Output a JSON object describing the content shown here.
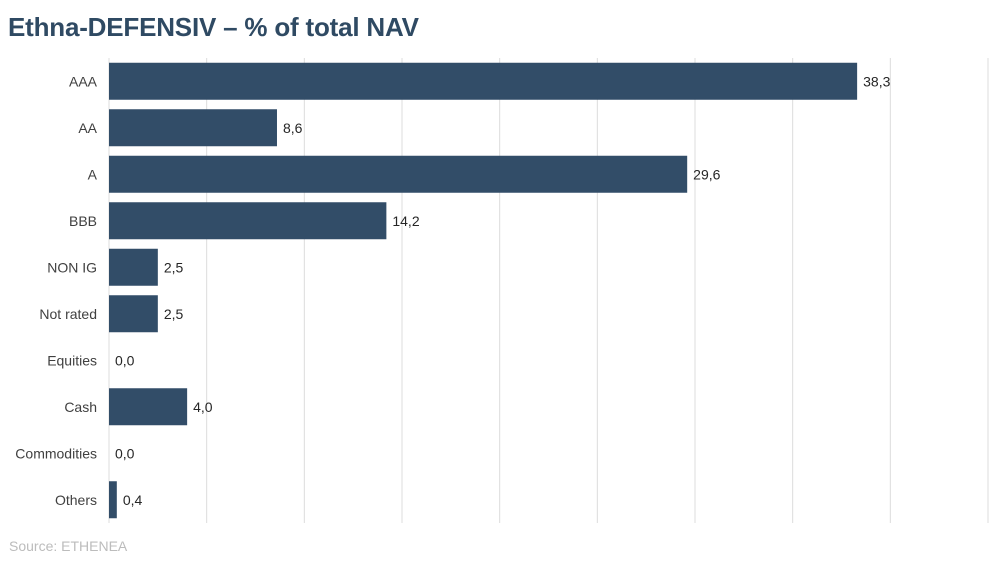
{
  "title": "Ethna-DEFENSIV – % of total NAV",
  "source": "Source: ETHENEA",
  "colors": {
    "bar": "#324d68",
    "title": "#2f4a63",
    "grid": "#dcdcdc"
  },
  "chart_data": {
    "type": "bar",
    "orientation": "horizontal",
    "title": "Ethna-DEFENSIV – % of total NAV",
    "categories": [
      "AAA",
      "AA",
      "A",
      "BBB",
      "NON IG",
      "Not rated",
      "Equities",
      "Cash",
      "Commodities",
      "Others"
    ],
    "values": [
      38.3,
      8.6,
      29.6,
      14.2,
      2.5,
      2.5,
      0.0,
      4.0,
      0.0,
      0.4
    ],
    "value_labels": [
      "38,3",
      "8,6",
      "29,6",
      "14,2",
      "2,5",
      "2,5",
      "0,0",
      "4,0",
      "0,0",
      "0,4"
    ],
    "xlim": [
      0,
      45
    ],
    "grid": true,
    "legend": "none"
  }
}
